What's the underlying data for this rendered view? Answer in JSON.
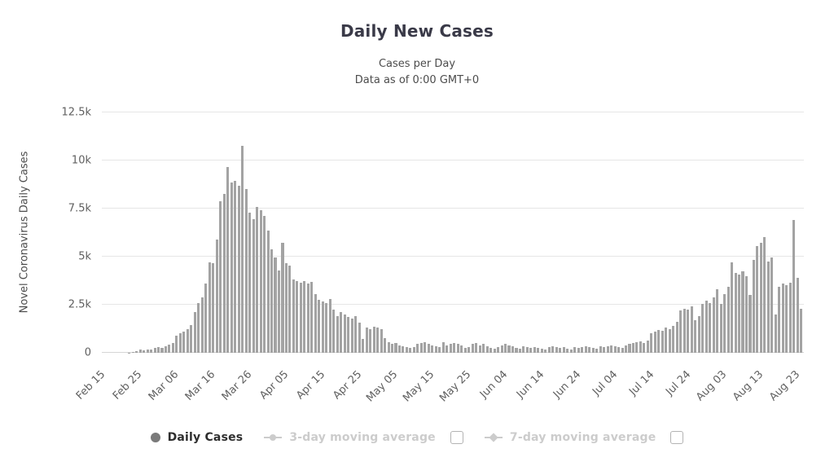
{
  "chart_data": {
    "type": "bar",
    "title": "Daily New Cases",
    "subtitle1": "Cases per Day",
    "subtitle2": "Data as of 0:00 GMT+0",
    "ylabel": "Novel Coronavirus Daily Cases",
    "series_name": "Daily Cases",
    "ylim": [
      0,
      12500
    ],
    "grid": true,
    "y_ticks": [
      {
        "value": 0,
        "label": "0"
      },
      {
        "value": 2500,
        "label": "2.5k"
      },
      {
        "value": 5000,
        "label": "5k"
      },
      {
        "value": 7500,
        "label": "7.5k"
      },
      {
        "value": 10000,
        "label": "10k"
      },
      {
        "value": 12500,
        "label": "12.5k"
      }
    ],
    "x_tick_labels": [
      "Feb 15",
      "Feb 25",
      "Mar 06",
      "Mar 16",
      "Mar 26",
      "Apr 05",
      "Apr 15",
      "Apr 25",
      "May 05",
      "May 15",
      "May 25",
      "Jun 04",
      "Jun 14",
      "Jun 24",
      "Jul 04",
      "Jul 14",
      "Jul 24",
      "Aug 03",
      "Aug 13",
      "Aug 23"
    ],
    "x_tick_interval": 10,
    "x_start_label": "Feb 15",
    "values": [
      0,
      0,
      0,
      0,
      0,
      0,
      0,
      20,
      60,
      100,
      150,
      120,
      180,
      160,
      240,
      300,
      260,
      350,
      420,
      500,
      900,
      1000,
      1100,
      1250,
      1450,
      2100,
      2600,
      2900,
      3600,
      4700,
      4650,
      5900,
      7900,
      8250,
      9650,
      8850,
      8950,
      8700,
      10750,
      8500,
      7300,
      6950,
      7600,
      7400,
      7100,
      6350,
      5400,
      4950,
      4300,
      5700,
      4650,
      4550,
      3800,
      3750,
      3650,
      3750,
      3600,
      3700,
      3050,
      2750,
      2650,
      2600,
      2800,
      2250,
      1900,
      2100,
      2000,
      1850,
      1800,
      1900,
      1550,
      700,
      1300,
      1250,
      1350,
      1300,
      1250,
      750,
      550,
      450,
      500,
      400,
      350,
      300,
      250,
      300,
      450,
      500,
      550,
      450,
      400,
      350,
      300,
      550,
      400,
      450,
      500,
      450,
      400,
      250,
      300,
      450,
      500,
      400,
      450,
      350,
      250,
      200,
      300,
      400,
      450,
      400,
      350,
      250,
      200,
      350,
      300,
      250,
      300,
      250,
      200,
      150,
      300,
      350,
      300,
      250,
      300,
      200,
      150,
      300,
      250,
      300,
      350,
      300,
      250,
      200,
      350,
      300,
      350,
      400,
      350,
      300,
      250,
      400,
      450,
      500,
      550,
      600,
      500,
      650,
      1000,
      1100,
      1200,
      1150,
      1300,
      1250,
      1400,
      1600,
      2200,
      2300,
      2250,
      2400,
      1700,
      1900,
      2550,
      2700,
      2600,
      2900,
      3300,
      2550,
      3050,
      3450,
      4700,
      4150,
      4050,
      4250,
      4000,
      3000,
      4850,
      5550,
      5700,
      6000,
      4750,
      4950,
      2000,
      3450,
      3600,
      3500,
      3650,
      6900,
      3900,
      2300
    ]
  },
  "legend": {
    "items": [
      {
        "id": "daily-cases",
        "label": "Daily Cases",
        "marker": "circle",
        "active": true,
        "checkbox": false
      },
      {
        "id": "3-day-moving-average",
        "label": "3-day moving average",
        "marker": "line-circle",
        "active": false,
        "checkbox": true
      },
      {
        "id": "7-day-moving-average",
        "label": "7-day moving average",
        "marker": "line-diamond",
        "active": false,
        "checkbox": true
      }
    ]
  },
  "colors": {
    "bar": "#a3a3a3",
    "grid": "#e6e6e6",
    "axis_text": "#606060",
    "title_text": "#3a3a48",
    "active_legend_text": "#2e2e2e",
    "inactive_legend": "#cccccc",
    "legend_marker": "#7a7a7a"
  }
}
